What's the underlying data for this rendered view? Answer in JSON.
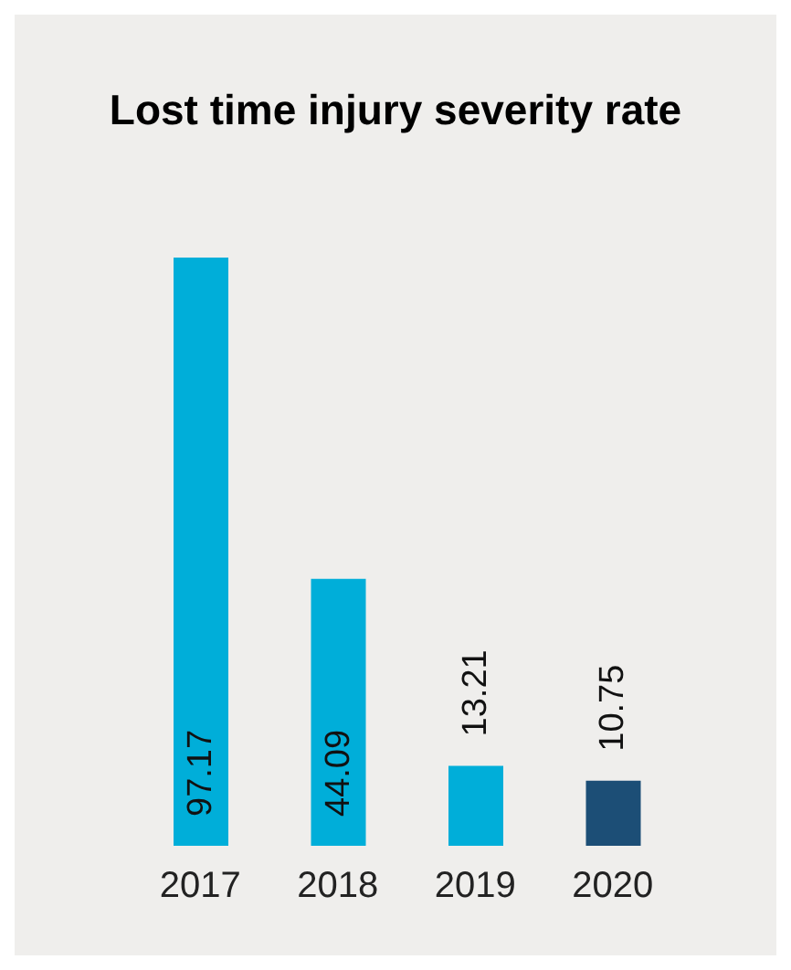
{
  "chart_data": {
    "type": "bar",
    "title": "Lost time injury severity rate",
    "categories": [
      "2017",
      "2018",
      "2019",
      "2020"
    ],
    "values": [
      97.17,
      44.09,
      13.21,
      10.75
    ],
    "colors": [
      "#00aed9",
      "#00aed9",
      "#00aed9",
      "#1c4e76"
    ],
    "data_labels": true,
    "tick_labels": "x"
  }
}
